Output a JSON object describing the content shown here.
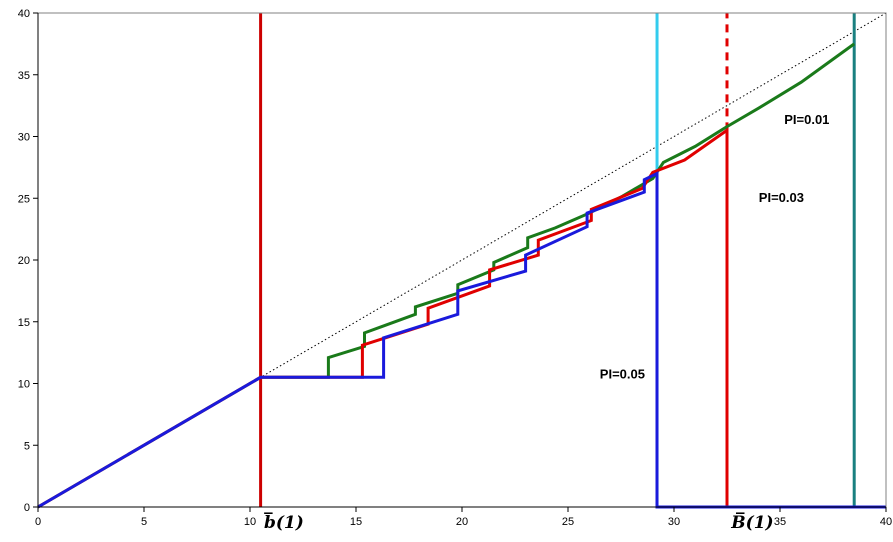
{
  "chart_data": {
    "type": "line",
    "title": "",
    "xlabel": "",
    "ylabel": "",
    "xlim": [
      0,
      40
    ],
    "ylim": [
      0,
      40
    ],
    "x_ticks": [
      0,
      5,
      10,
      15,
      20,
      25,
      30,
      35,
      40
    ],
    "y_ticks": [
      0,
      5,
      10,
      15,
      20,
      25,
      30,
      35,
      40
    ],
    "grid": false,
    "legend": "none",
    "colors": {
      "diagonal": "#000000",
      "green": "#1a7a1a",
      "red": "#e00000",
      "blue": "#1a1adc",
      "vline_b_lower": "#cc0000",
      "vline_pi005": "#33ccee",
      "vline_pi003": "#e00000",
      "vline_pi001": "#1a8080"
    },
    "diagonal": {
      "x": [
        0,
        40
      ],
      "y": [
        0,
        40
      ],
      "style": "dotted"
    },
    "series": [
      {
        "color_key": "green",
        "points": [
          [
            0,
            0
          ],
          [
            10.5,
            10.5
          ],
          [
            13.7,
            10.5
          ],
          [
            13.7,
            12.1
          ],
          [
            15.4,
            13.0
          ],
          [
            15.4,
            14.1
          ],
          [
            17.8,
            15.6
          ],
          [
            17.8,
            16.2
          ],
          [
            19.8,
            17.3
          ],
          [
            19.8,
            18.0
          ],
          [
            21.5,
            19.2
          ],
          [
            21.5,
            19.8
          ],
          [
            23.1,
            21.0
          ],
          [
            23.1,
            21.8
          ],
          [
            24.4,
            22.6
          ],
          [
            26.0,
            23.8
          ],
          [
            27.5,
            25.1
          ],
          [
            29.0,
            26.6
          ],
          [
            29.5,
            27.9
          ],
          [
            31.0,
            29.2
          ],
          [
            32.5,
            30.8
          ],
          [
            34.0,
            32.3
          ],
          [
            36.0,
            34.4
          ],
          [
            38.5,
            37.5
          ]
        ]
      },
      {
        "color_key": "red",
        "points": [
          [
            0,
            0
          ],
          [
            10.5,
            10.5
          ],
          [
            15.3,
            10.5
          ],
          [
            15.3,
            13.1
          ],
          [
            18.4,
            14.8
          ],
          [
            18.4,
            16.1
          ],
          [
            21.3,
            17.9
          ],
          [
            21.3,
            19.2
          ],
          [
            23.6,
            20.4
          ],
          [
            23.6,
            21.6
          ],
          [
            26.1,
            23.2
          ],
          [
            26.1,
            24.1
          ],
          [
            28.5,
            25.8
          ],
          [
            29.0,
            27.1
          ],
          [
            30.5,
            28.1
          ],
          [
            32.5,
            30.5
          ],
          [
            32.5,
            0
          ]
        ]
      },
      {
        "color_key": "blue",
        "points": [
          [
            0,
            0
          ],
          [
            10.5,
            10.5
          ],
          [
            16.3,
            10.5
          ],
          [
            16.3,
            13.7
          ],
          [
            19.8,
            15.6
          ],
          [
            19.8,
            17.5
          ],
          [
            23.0,
            19.1
          ],
          [
            23.0,
            20.4
          ],
          [
            25.9,
            22.7
          ],
          [
            25.9,
            23.8
          ],
          [
            28.6,
            25.5
          ],
          [
            28.6,
            26.5
          ],
          [
            29.2,
            27.0
          ],
          [
            29.2,
            0
          ],
          [
            40,
            0
          ]
        ]
      }
    ],
    "vertical_lines": [
      {
        "x": 10.5,
        "color_key": "vline_b_lower",
        "style": "solid"
      },
      {
        "x": 29.2,
        "color_key": "vline_pi005",
        "style": "solid"
      },
      {
        "x": 32.5,
        "y_from": 30.5,
        "y_to": 40,
        "color_key": "vline_pi003",
        "style": "dashed"
      },
      {
        "x": 38.5,
        "color_key": "vline_pi001",
        "style": "solid"
      }
    ],
    "annotations": [
      {
        "id": "pi005",
        "text": "PI=0.05",
        "x": 26.5,
        "y": 10.4
      },
      {
        "id": "pi003",
        "text": "PI=0.03",
        "x": 34.0,
        "y": 24.7
      },
      {
        "id": "pi001",
        "text": "PI=0.01",
        "x": 35.2,
        "y": 31.0
      }
    ],
    "axis_symbols": [
      {
        "id": "b-lower",
        "text": "b̅(1)",
        "x": 11.6
      },
      {
        "id": "b-upper",
        "text": "B̅(1)",
        "x": 33.7
      }
    ]
  }
}
